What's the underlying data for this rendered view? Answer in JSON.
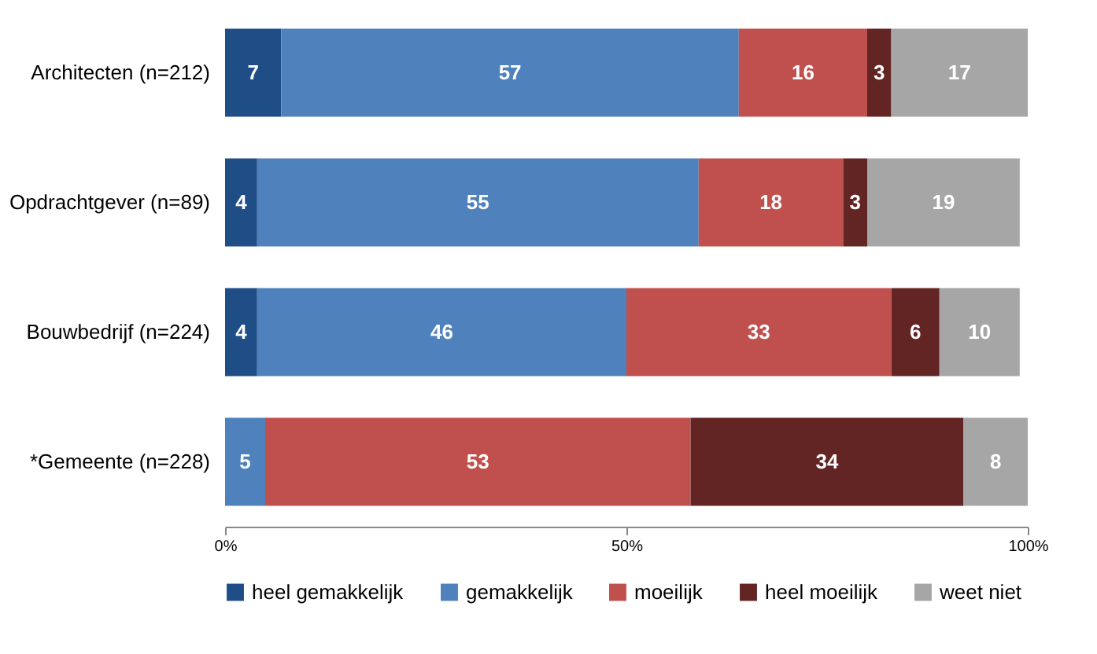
{
  "chart_data": {
    "type": "bar",
    "orientation": "horizontal",
    "stacked": true,
    "data_labels": true,
    "legend": "bottom",
    "grid": false,
    "categories": [
      "Architecten (n=212)",
      "Opdrachtgever (n=89)",
      "Bouwbedrijf (n=224)",
      "*Gemeente (n=228)"
    ],
    "series": [
      {
        "name": "heel gemakkelijk",
        "color": "#1f4e87",
        "values": [
          7,
          4,
          4,
          null
        ]
      },
      {
        "name": "gemakkelijk",
        "color": "#4f81bd",
        "values": [
          57,
          55,
          46,
          5
        ]
      },
      {
        "name": "moeilijk",
        "color": "#c0504d",
        "values": [
          16,
          18,
          33,
          53
        ]
      },
      {
        "name": "heel moeilijk",
        "color": "#632523",
        "values": [
          3,
          3,
          6,
          34
        ]
      },
      {
        "name": "weet niet",
        "color": "#a6a6a6",
        "values": [
          17,
          19,
          10,
          8
        ]
      }
    ],
    "xlim": [
      0,
      100
    ],
    "xticks": [
      {
        "value": 0,
        "label": "0%"
      },
      {
        "value": 50,
        "label": "50%"
      },
      {
        "value": 100,
        "label": "100%"
      }
    ]
  }
}
